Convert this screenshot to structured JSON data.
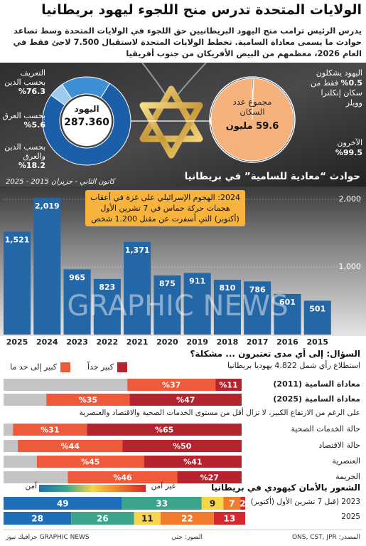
{
  "header": {
    "title": "الولايات المتحدة تدرس منح اللجوء ليهود بريطانيا",
    "subtitle": "يدرس الرئيس ترامب منح اليهود البريطانيين حق اللجوء في الولايات المتحدة وسط تصاعد حوادث ما يسمى معاداة السامية. تخطط الولايات المتحدة لاستقبال 7.500 لاجئ فقط في العام 2026، معظمهم من البيض الأفريكان من جنوب أفريقيا"
  },
  "chart_data": [
    {
      "type": "pie",
      "center_title": "اليهود",
      "center_value": "287.360",
      "categories": [
        "التعريف بحسب الدين",
        "بحسب العرق",
        "بحسب الدين والعرق"
      ],
      "values": [
        76.3,
        5.6,
        18.2
      ],
      "value_labels": [
        "%76.3",
        "%5.6",
        "%18.2"
      ],
      "colors": [
        "#1c5fa9",
        "#9ccbef",
        "#3f8fd6"
      ]
    },
    {
      "type": "pie",
      "center_title": "مجموع عدد السكان",
      "center_value": "59.6 مليون",
      "categories": [
        "اليهود",
        "الآخرون"
      ],
      "values": [
        0.5,
        99.5
      ],
      "value_labels": [
        "%0.5",
        "%99.5"
      ],
      "annotations": [
        "يشكلون",
        "فقط من سكان إنكلترا وويلز"
      ],
      "colors": [
        "#5a3a20",
        "#f5b27c"
      ]
    },
    {
      "type": "bar",
      "title": "حوادث “معادية للسامية” في بريطانيا",
      "subtitle": "كانون الثاني - حزيران 2015 - 2025",
      "categories": [
        "2025",
        "2024",
        "2023",
        "2022",
        "2021",
        "2020",
        "2019",
        "2018",
        "2017",
        "2016",
        "2015"
      ],
      "values": [
        1521,
        2019,
        965,
        823,
        1371,
        875,
        911,
        810,
        786,
        601,
        501
      ],
      "value_labels": [
        "1,521",
        "2,019",
        "965",
        "823",
        "1,371",
        "875",
        "911",
        "810",
        "786",
        "601",
        "501"
      ],
      "color": "#2467a6",
      "ylim": [
        0,
        2200
      ],
      "yticks": [
        {
          "value": 1000,
          "label": "1,000"
        },
        {
          "value": 2000,
          "label": "2,000"
        }
      ],
      "grid": true,
      "annotation": "2024: الهجوم الإسرائيلي على غزة في أعقاب هجمات حركة حماس في 7 تشرين الأول (أكتوبر) التي أسفرت عن مقتل 1.200 شخص"
    },
    {
      "type": "bar",
      "orientation": "horizontal",
      "stacked": true,
      "title": "السؤال: إلى أي مدى تعتبرون ... مشكلة؟",
      "subtitle": "استطلاع رأي شمل 4.822 يهوديا بريطانيا",
      "annotation": "على الرغم من الارتفاع الكبير، لا تزال أقل من مستوى الخدمات الصحية والاقتصاد والعنصرية",
      "categories": [
        "معاداة السامية (2011)",
        "معاداة السامية (2025)",
        "حالة الخدمات الصحية",
        "حالة الاقتصاد",
        "العنصرية",
        "الجريمة"
      ],
      "xlim": [
        0,
        100
      ],
      "track_color": "#c4c4c4",
      "series": [
        {
          "name": "كبير جداً",
          "color": "#b5232f",
          "values": [
            11,
            47,
            65,
            50,
            41,
            27
          ],
          "value_labels": [
            "%11",
            "%47",
            "%65",
            "%50",
            "%41",
            "%27"
          ]
        },
        {
          "name": "كبير إلى حد ما",
          "color": "#ee5a3a",
          "values": [
            37,
            35,
            31,
            44,
            45,
            46
          ],
          "value_labels": [
            "%37",
            "%35",
            "%31",
            "%44",
            "%45",
            "%46"
          ]
        }
      ]
    },
    {
      "type": "bar",
      "orientation": "horizontal",
      "stacked": true,
      "title": "الشعور بالأمان كيهودي في بريطانيا",
      "legend_labels": [
        "آمن",
        "غير آمن"
      ],
      "categories": [
        "2023 (قبل 7 تشرين الأول (أكتوبر)",
        "2025"
      ],
      "xlim": [
        0,
        100
      ],
      "series": [
        {
          "color": "#1f6fb8",
          "values": [
            49,
            28
          ]
        },
        {
          "color": "#3aa58c",
          "values": [
            33,
            26
          ]
        },
        {
          "color": "#f7d54a",
          "values": [
            9,
            11
          ]
        },
        {
          "color": "#f07b2c",
          "values": [
            7,
            22
          ]
        },
        {
          "color": "#d8262e",
          "values": [
            2,
            13
          ]
        }
      ]
    }
  ],
  "watermark": "GRAPHIC NEWS",
  "footer": {
    "source": "المصدر: ONS, CST, JPR",
    "photo": "الصور: جتي",
    "logo": "GRAPHIC NEWS جرافيك نيوز"
  }
}
